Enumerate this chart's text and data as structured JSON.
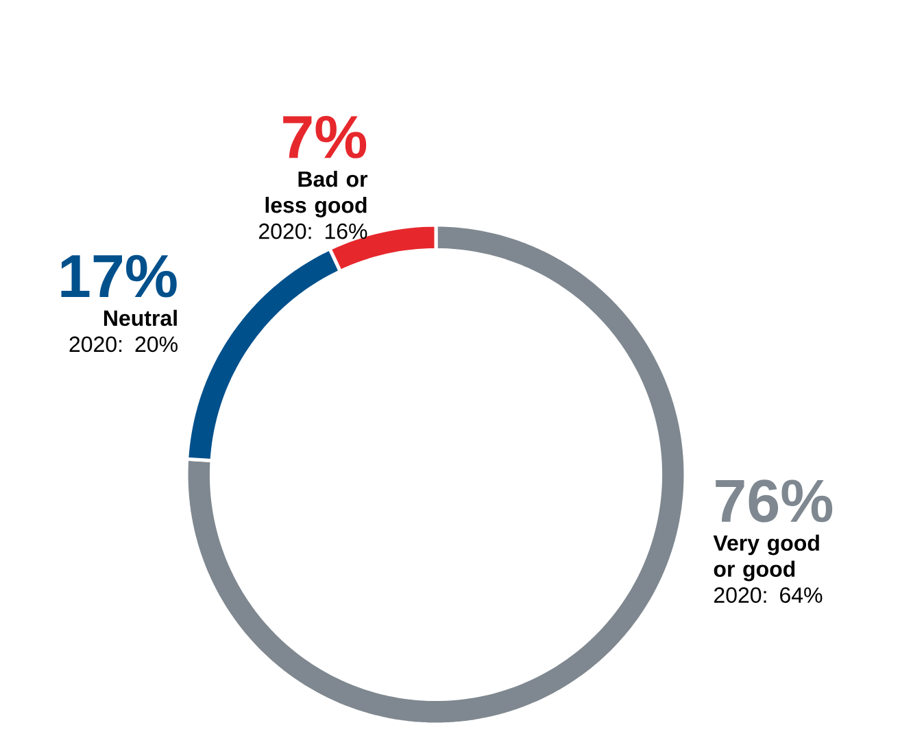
{
  "chart_data": {
    "type": "donut",
    "categories": [
      "Very good or good",
      "Neutral",
      "Bad or less good"
    ],
    "values": [
      76,
      17,
      7
    ],
    "colors": [
      "#7f8890",
      "#00508c",
      "#e6282d"
    ],
    "value_labels": [
      "76%",
      "17%",
      "7%"
    ],
    "annotations": [
      "2020: 64%",
      "2020: 20%",
      "2020: 16%"
    ]
  }
}
